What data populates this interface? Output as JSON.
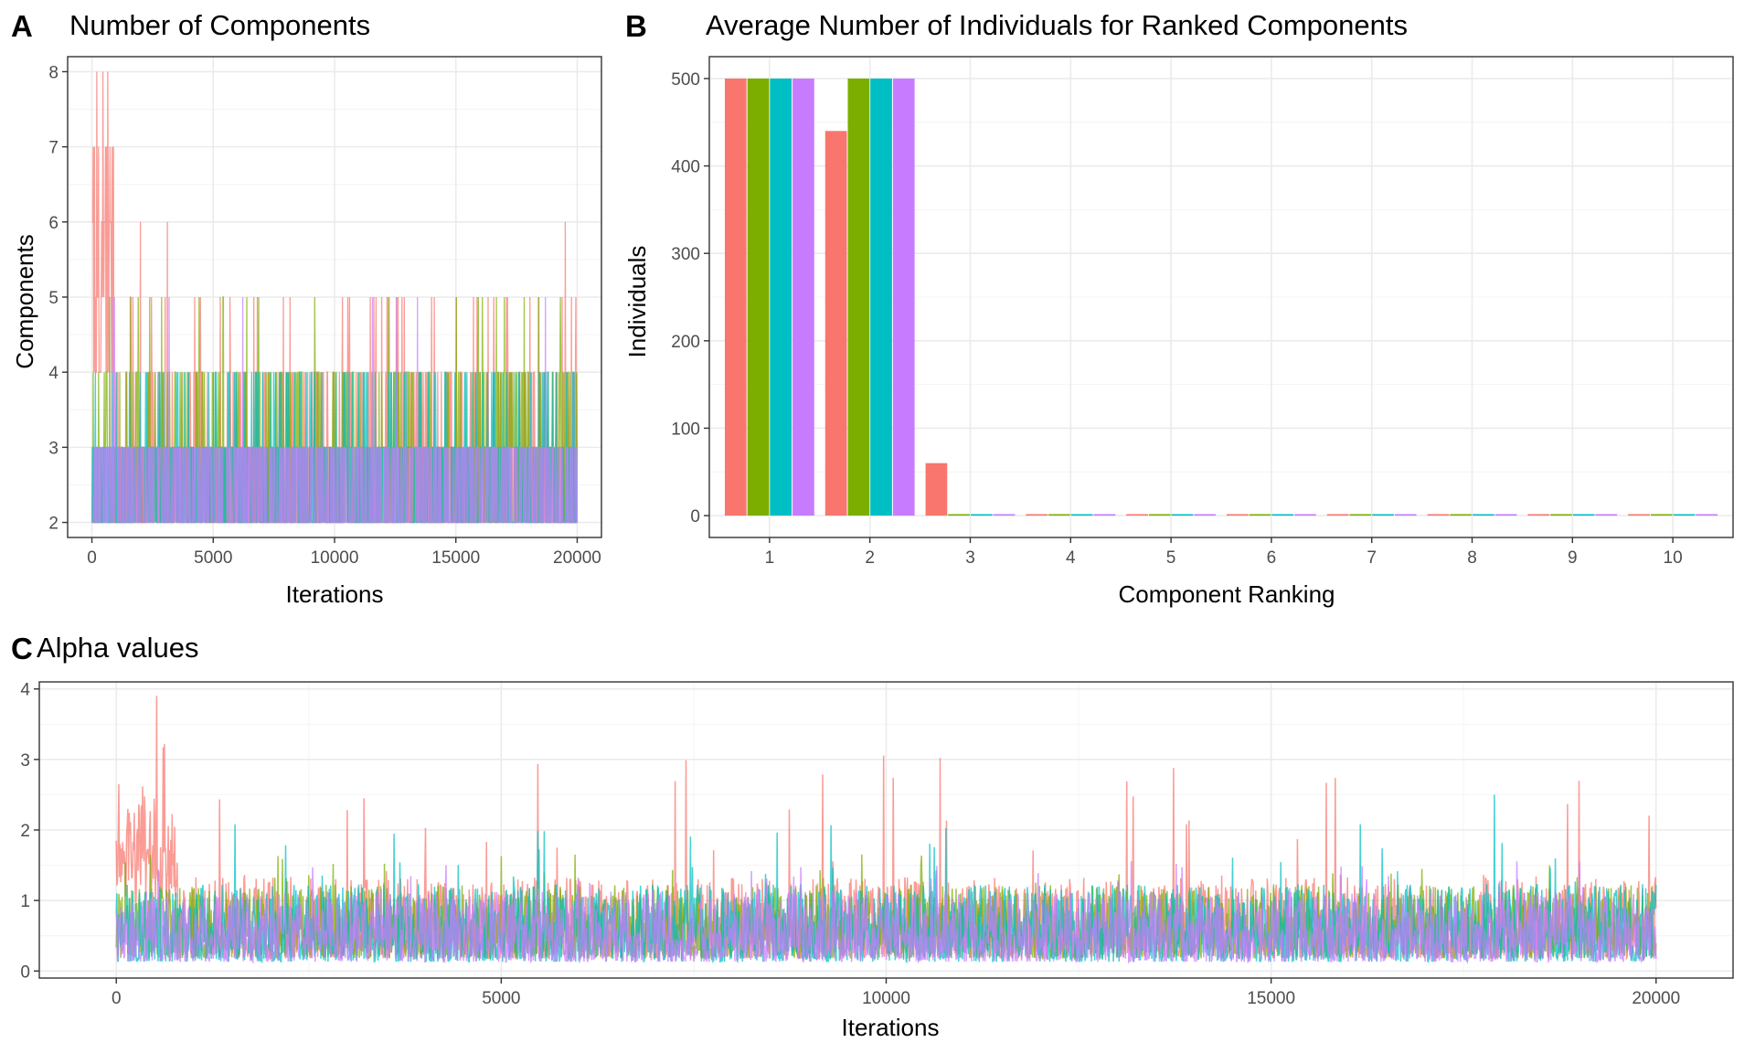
{
  "colors": {
    "series": [
      "#F8766D",
      "#7CAE00",
      "#00BFC4",
      "#C77CFF"
    ],
    "grid": "#ebebeb",
    "border": "#333333",
    "tick_text": "#4d4d4d"
  },
  "chart_data": [
    {
      "tag": "A",
      "title": "Number of Components",
      "type": "line",
      "xlabel": "Iterations",
      "ylabel": "Components",
      "xlim": [
        -1000,
        21000
      ],
      "ylim": [
        1.8,
        8.2
      ],
      "x_ticks": [
        0,
        5000,
        10000,
        15000,
        20000
      ],
      "y_ticks": [
        2,
        3,
        4,
        5,
        6,
        7,
        8
      ],
      "grid": true,
      "iterations": 20000,
      "series_summary": [
        {
          "color_index": 0,
          "typical_range": [
            2,
            5
          ],
          "max": 8,
          "peaks": [
            {
              "x": 200,
              "y": 8
            },
            {
              "x": 450,
              "y": 8
            },
            {
              "x": 650,
              "y": 8
            },
            {
              "x": 100,
              "y": 7
            },
            {
              "x": 600,
              "y": 7
            },
            {
              "x": 2000,
              "y": 6
            },
            {
              "x": 3100,
              "y": 6
            },
            {
              "x": 19500,
              "y": 6
            }
          ]
        },
        {
          "color_index": 1,
          "typical_range": [
            2,
            4
          ],
          "max": 5
        },
        {
          "color_index": 2,
          "typical_range": [
            2,
            4
          ],
          "max": 4
        },
        {
          "color_index": 3,
          "typical_range": [
            2,
            3
          ],
          "max": 5
        }
      ]
    },
    {
      "tag": "B",
      "title": "Average Number of Individuals for Ranked Components",
      "type": "bar",
      "xlabel": "Component Ranking",
      "ylabel": "Individuals",
      "categories": [
        "1",
        "2",
        "3",
        "4",
        "5",
        "6",
        "7",
        "8",
        "9",
        "10"
      ],
      "ylim": [
        -25,
        525
      ],
      "y_ticks": [
        0,
        100,
        200,
        300,
        400,
        500
      ],
      "grid": true,
      "series": [
        {
          "values": [
            500,
            440,
            60,
            0,
            0,
            0,
            0,
            0,
            0,
            0
          ]
        },
        {
          "values": [
            500,
            500,
            0,
            0,
            0,
            0,
            0,
            0,
            0,
            0
          ]
        },
        {
          "values": [
            500,
            500,
            0,
            0,
            0,
            0,
            0,
            0,
            0,
            0
          ]
        },
        {
          "values": [
            500,
            500,
            0,
            0,
            0,
            0,
            0,
            0,
            0,
            0
          ]
        }
      ]
    },
    {
      "tag": "C",
      "title": "Alpha values",
      "type": "line",
      "xlabel": "Iterations",
      "ylabel": "",
      "xlim": [
        -1000,
        21000
      ],
      "ylim": [
        -0.1,
        4.1
      ],
      "x_ticks": [
        0,
        5000,
        10000,
        15000,
        20000
      ],
      "y_ticks": [
        0,
        1,
        2,
        3,
        4
      ],
      "grid": true,
      "iterations": 20000,
      "series_summary": [
        {
          "color_index": 0,
          "typical_range": [
            0.1,
            1.2
          ],
          "max": 3.9,
          "peaks": [
            {
              "x": 520,
              "y": 3.9
            },
            {
              "x": 30,
              "y": 2.65
            },
            {
              "x": 3210,
              "y": 2.45
            },
            {
              "x": 150,
              "y": 2.3
            }
          ]
        },
        {
          "color_index": 1,
          "typical_range": [
            0.1,
            1.1
          ],
          "max": 1.9
        },
        {
          "color_index": 2,
          "typical_range": [
            0.05,
            1.1
          ],
          "max": 2.5,
          "peaks": [
            {
              "x": 17900,
              "y": 2.5
            }
          ]
        },
        {
          "color_index": 3,
          "typical_range": [
            0.05,
            1.0
          ],
          "max": 1.8
        }
      ]
    }
  ]
}
